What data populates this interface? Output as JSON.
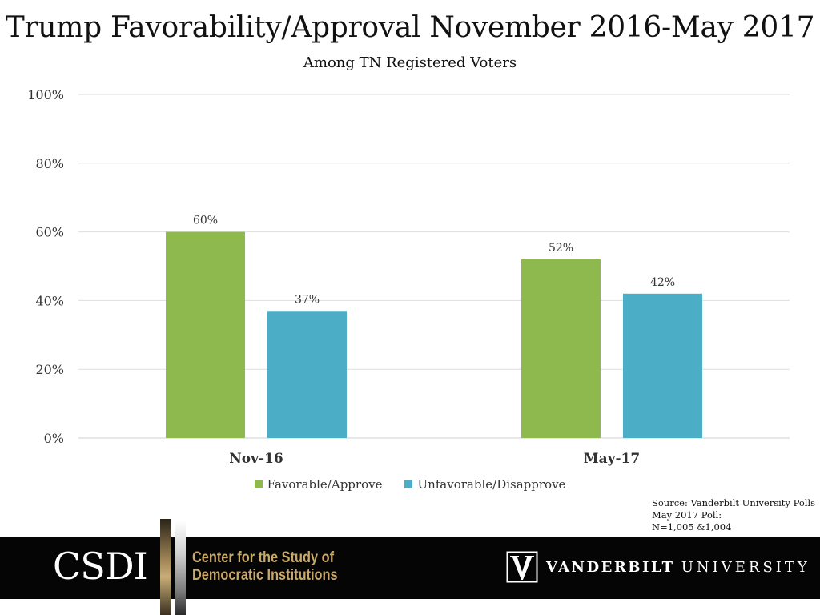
{
  "chart_data": {
    "type": "bar",
    "title": "Trump Favorability/Approval November 2016-May 2017",
    "subtitle": "Among TN Registered Voters",
    "categories": [
      "Nov-16",
      "May-17"
    ],
    "series": [
      {
        "name": "Favorable/Approve",
        "color": "#8db94f",
        "values": [
          60,
          52
        ],
        "labels": [
          "60%",
          "52%"
        ]
      },
      {
        "name": "Unfavorable/Disapprove",
        "color": "#4badc6",
        "values": [
          37,
          42
        ],
        "labels": [
          "37%",
          "42%"
        ]
      }
    ],
    "ylim": [
      0,
      100
    ],
    "yticks": [
      0,
      20,
      40,
      60,
      80,
      100
    ],
    "ytick_labels": [
      "0%",
      "20%",
      "40%",
      "60%",
      "80%",
      "100%"
    ],
    "grid": true,
    "legend": "bottom",
    "xlabel": "",
    "ylabel": ""
  },
  "source": {
    "lines": [
      "Source: Vanderbilt University Polls",
      "May 2017 Poll:",
      "N=1,005 &1,004"
    ]
  },
  "footer": {
    "csdi_logo": "CSDI",
    "csdi_name_line1": "Center for the Study of",
    "csdi_name_line2": "Democratic Institutions",
    "vu_name_bold": "VANDERBILT",
    "vu_name_light": "UNIVERSITY",
    "emblem_icon": "vanderbilt-v-oak-leaf-icon"
  }
}
